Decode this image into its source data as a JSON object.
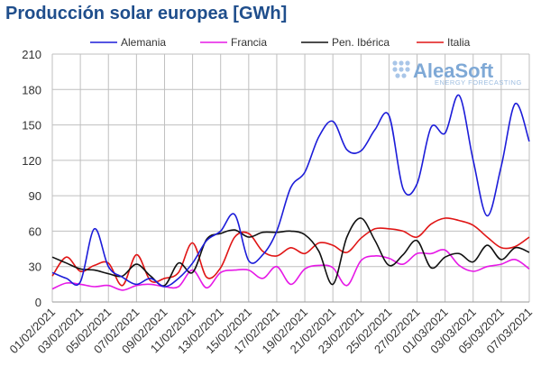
{
  "chart_data": {
    "type": "line",
    "title": "Producción solar europea [GWh]",
    "xlabel": "",
    "ylabel": "",
    "ylim": [
      0,
      210
    ],
    "yticks": [
      0,
      30,
      60,
      90,
      120,
      150,
      180,
      210
    ],
    "grid": true,
    "legend_position": "top",
    "x_tick_labels": [
      "01/02/2021",
      "03/02/2021",
      "05/02/2021",
      "07/02/2021",
      "09/02/2021",
      "11/02/2021",
      "13/02/2021",
      "15/02/2021",
      "17/02/2021",
      "19/02/2021",
      "21/02/2021",
      "23/02/2021",
      "25/02/2021",
      "27/02/2021",
      "01/03/2021",
      "03/03/2021",
      "05/03/2021",
      "07/03/2021"
    ],
    "x": [
      "01/02/2021",
      "02/02/2021",
      "03/02/2021",
      "04/02/2021",
      "05/02/2021",
      "06/02/2021",
      "07/02/2021",
      "08/02/2021",
      "09/02/2021",
      "10/02/2021",
      "11/02/2021",
      "12/02/2021",
      "13/02/2021",
      "14/02/2021",
      "15/02/2021",
      "16/02/2021",
      "17/02/2021",
      "18/02/2021",
      "19/02/2021",
      "20/02/2021",
      "21/02/2021",
      "22/02/2021",
      "23/02/2021",
      "24/02/2021",
      "25/02/2021",
      "26/02/2021",
      "27/02/2021",
      "28/02/2021",
      "01/03/2021",
      "02/03/2021",
      "03/03/2021",
      "04/03/2021",
      "05/03/2021",
      "06/03/2021",
      "07/03/2021"
    ],
    "series": [
      {
        "name": "Alemania",
        "color": "#1c1cd9",
        "values": [
          25,
          20,
          17,
          62,
          30,
          21,
          15,
          20,
          13,
          20,
          33,
          52,
          60,
          74,
          35,
          40,
          60,
          97,
          110,
          140,
          153,
          129,
          128,
          146,
          158,
          96,
          100,
          148,
          143,
          175,
          120,
          73,
          115,
          168,
          136
        ]
      },
      {
        "name": "Francia",
        "color": "#e619e6",
        "values": [
          11,
          16,
          15,
          13,
          14,
          10,
          14,
          15,
          13,
          13,
          27,
          12,
          25,
          27,
          27,
          20,
          30,
          15,
          28,
          31,
          29,
          14,
          35,
          39,
          37,
          32,
          41,
          41,
          44,
          31,
          26,
          30,
          32,
          36,
          28
        ]
      },
      {
        "name": "Pen. Ibérica",
        "color": "#111111",
        "values": [
          38,
          33,
          28,
          27,
          24,
          22,
          32,
          22,
          14,
          33,
          25,
          53,
          58,
          61,
          55,
          59,
          59,
          60,
          57,
          43,
          15,
          55,
          71,
          52,
          31,
          40,
          52,
          29,
          38,
          41,
          34,
          48,
          36,
          46,
          42
        ]
      },
      {
        "name": "Italia",
        "color": "#e01515",
        "values": [
          22,
          38,
          26,
          31,
          33,
          14,
          40,
          18,
          20,
          25,
          50,
          21,
          29,
          55,
          58,
          43,
          39,
          46,
          41,
          50,
          48,
          42,
          54,
          62,
          62,
          60,
          55,
          66,
          71,
          69,
          65,
          55,
          46,
          47,
          55
        ]
      }
    ]
  },
  "watermark": {
    "name": "AleaSoft",
    "tagline": "ENERGY FORECASTING"
  }
}
